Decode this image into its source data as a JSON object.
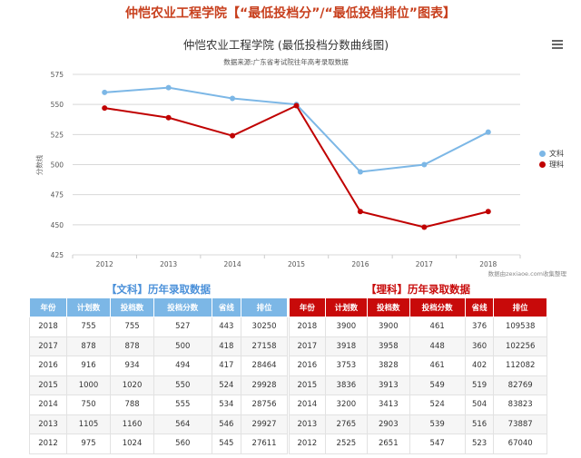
{
  "page_title": "仲恺农业工程学院【“最低投档分”/“最低投档排位”图表】",
  "chart_data": {
    "type": "line",
    "title": "仲恺农业工程学院 (最低投档分数曲线图)",
    "subtitle": "数据来源:广东省考试院往年高考录取数据",
    "ylabel": "分数线",
    "xlabel": "",
    "categories": [
      "2012",
      "2013",
      "2014",
      "2015",
      "2016",
      "2017",
      "2018"
    ],
    "y_ticks": [
      "575",
      "550",
      "525",
      "500",
      "475",
      "450",
      "425"
    ],
    "ylim": [
      425,
      575
    ],
    "grid": true,
    "legend_position": "right",
    "series": [
      {
        "name": "文科",
        "color": "#7cb7e6",
        "values": [
          560,
          564,
          555,
          550,
          494,
          500,
          527
        ]
      },
      {
        "name": "理科",
        "color": "#c00000",
        "values": [
          547,
          539,
          524,
          549,
          461,
          448,
          461
        ]
      }
    ],
    "credit": "数据由zexiaoe.com收集整理"
  },
  "wenke": {
    "title": "【文科】历年录取数据",
    "headers": [
      "年份",
      "计划数",
      "投档数",
      "投档分数",
      "省线",
      "排位"
    ],
    "rows": [
      [
        "2018",
        "755",
        "755",
        "527",
        "443",
        "30250"
      ],
      [
        "2017",
        "878",
        "878",
        "500",
        "418",
        "27158"
      ],
      [
        "2016",
        "916",
        "934",
        "494",
        "417",
        "28464"
      ],
      [
        "2015",
        "1000",
        "1020",
        "550",
        "524",
        "29928"
      ],
      [
        "2014",
        "750",
        "788",
        "555",
        "534",
        "28756"
      ],
      [
        "2013",
        "1105",
        "1160",
        "564",
        "546",
        "29927"
      ],
      [
        "2012",
        "975",
        "1024",
        "560",
        "545",
        "27611"
      ]
    ]
  },
  "like": {
    "title": "【理科】历年录取数据",
    "headers": [
      "年份",
      "计划数",
      "投档数",
      "投档分数",
      "省线",
      "排位"
    ],
    "rows": [
      [
        "2018",
        "3900",
        "3900",
        "461",
        "376",
        "109538"
      ],
      [
        "2017",
        "3918",
        "3958",
        "448",
        "360",
        "102256"
      ],
      [
        "2016",
        "3753",
        "3828",
        "461",
        "402",
        "112082"
      ],
      [
        "2015",
        "3836",
        "3913",
        "549",
        "519",
        "82769"
      ],
      [
        "2014",
        "3200",
        "3413",
        "524",
        "504",
        "83823"
      ],
      [
        "2013",
        "2765",
        "2903",
        "539",
        "516",
        "73887"
      ],
      [
        "2012",
        "2525",
        "2651",
        "547",
        "523",
        "67040"
      ]
    ]
  }
}
